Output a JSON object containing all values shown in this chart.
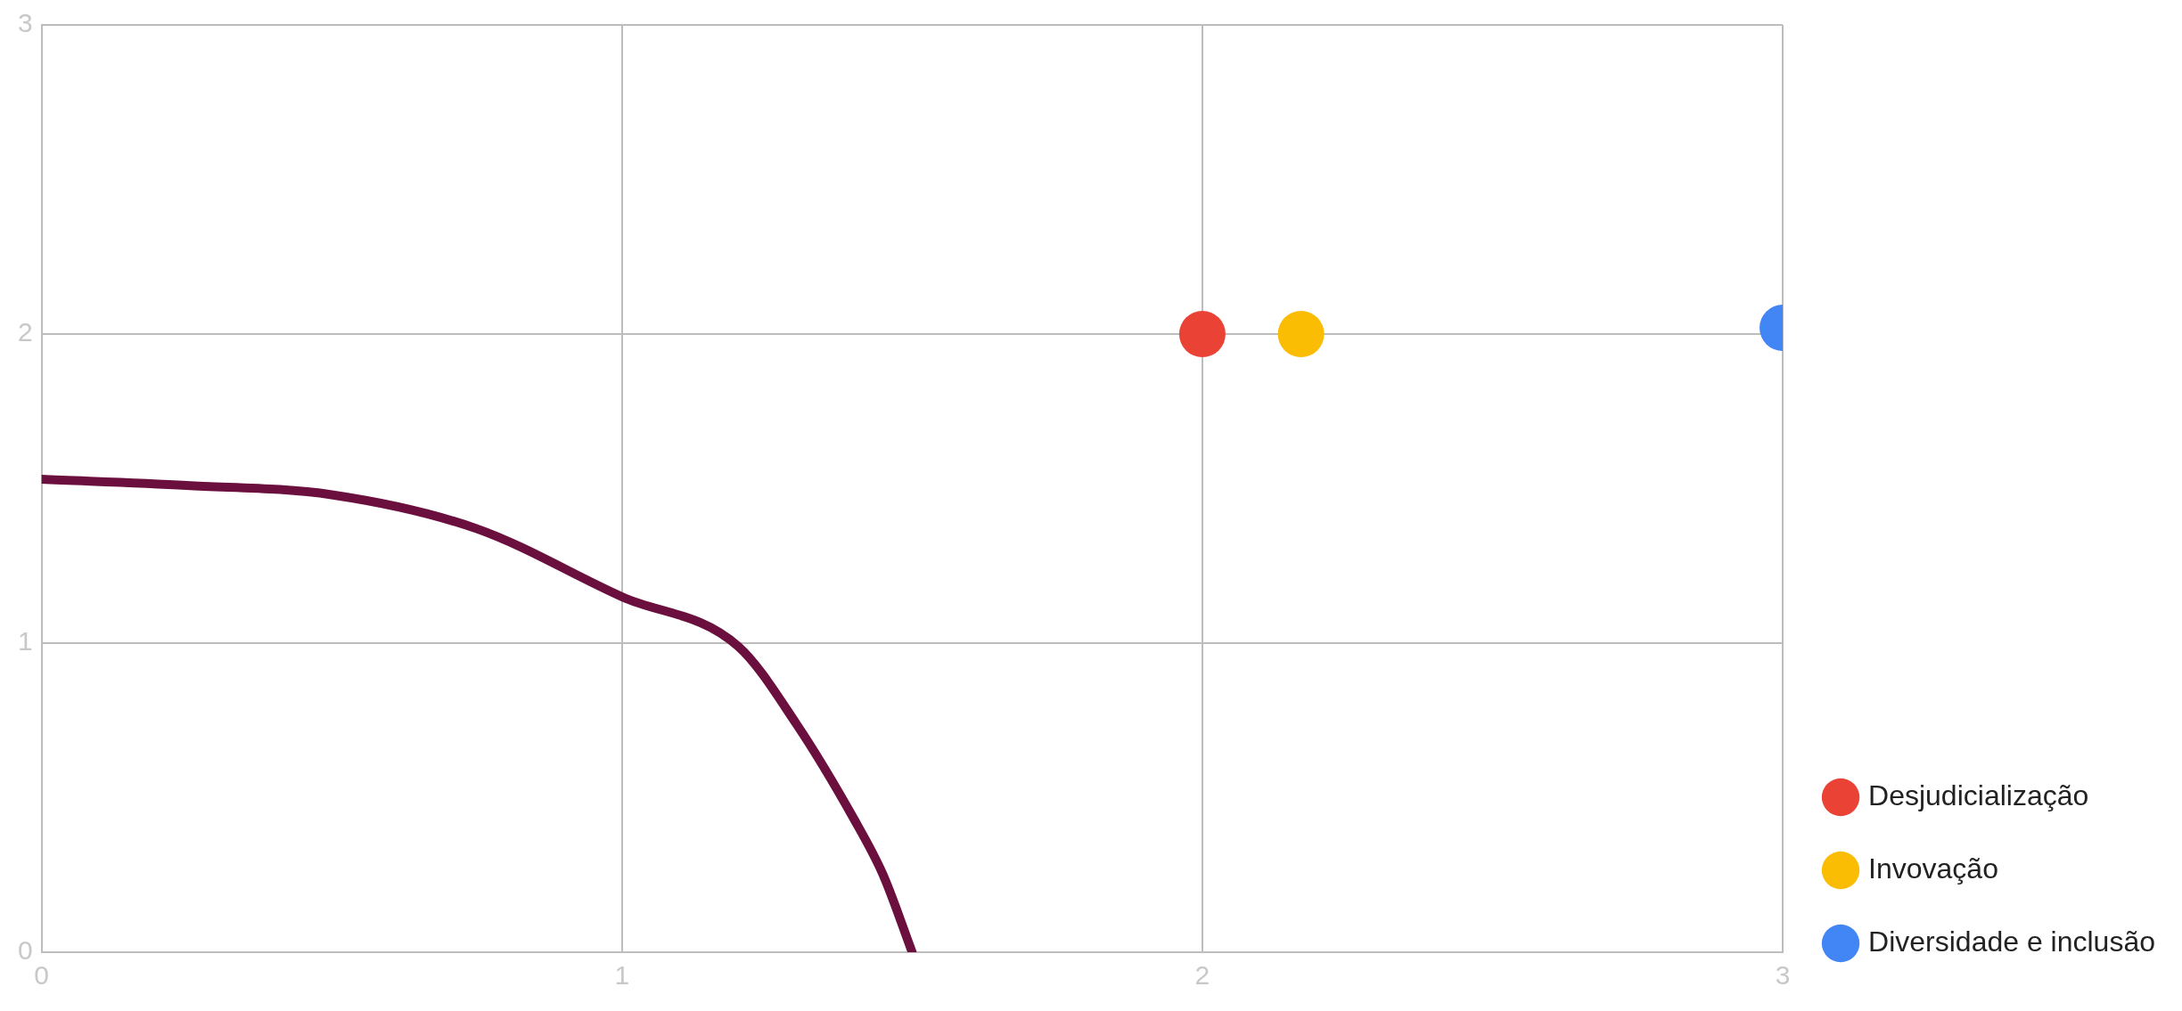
{
  "chart_data": {
    "type": "scatter",
    "xlim": [
      0,
      3
    ],
    "ylim": [
      0,
      3
    ],
    "xticks": [
      0,
      1,
      2,
      3
    ],
    "yticks": [
      0,
      1,
      2,
      3
    ],
    "grid": true,
    "legend": "bottom right",
    "marker": "circle",
    "series": [
      {
        "type": "line",
        "color": "#6b0f3f",
        "marker": "none",
        "x": [
          0,
          0.25,
          0.5,
          0.75,
          1,
          1.2,
          1.3,
          1.4,
          1.45,
          1.5
        ],
        "values": [
          1.53,
          1.51,
          1.48,
          1.37,
          1.15,
          0.99,
          0.74,
          0.43,
          0.25,
          0
        ]
      },
      {
        "name": "Desjudicialização",
        "color": "#ea4335",
        "x": [
          2
        ],
        "values": [
          2
        ]
      },
      {
        "name": "Invovação",
        "color": "#fbbc04",
        "x": [
          2.17
        ],
        "values": [
          2
        ]
      },
      {
        "name": "Diversidade e inclusão",
        "color": "#4285f4",
        "x": [
          3
        ],
        "values": [
          2.02
        ]
      }
    ]
  }
}
